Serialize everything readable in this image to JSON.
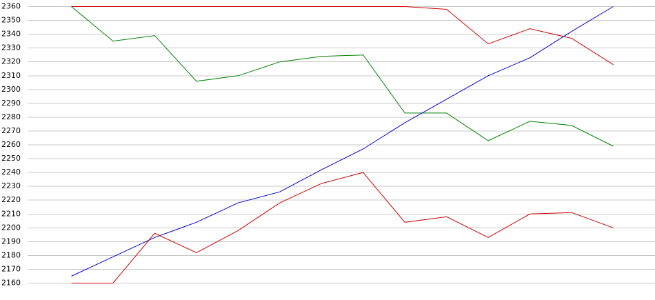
{
  "chart_data": {
    "type": "line",
    "categories": [
      null,
      null,
      null,
      null,
      null,
      null,
      null,
      null,
      null,
      null,
      null,
      null,
      null,
      null
    ],
    "series": [
      {
        "color": "#cc0000",
        "values": [
          2360,
          2360,
          2360,
          2360,
          2360,
          2360,
          2360,
          2360,
          2360,
          2358,
          2333,
          2344,
          2337,
          2318
        ]
      },
      {
        "color": "#008000",
        "values": [
          2360,
          2335,
          2339,
          2306,
          2310,
          2320,
          2324,
          2325,
          2283,
          2283,
          2263,
          2277,
          2274,
          2259
        ]
      },
      {
        "color": "#0000cc",
        "values": [
          2165,
          2179,
          2193,
          2204,
          2218,
          2226,
          2242,
          2257,
          2276,
          2293,
          2310,
          2323,
          2342,
          2360
        ]
      },
      {
        "color": "#cc0000",
        "values": [
          2160,
          2160,
          2196,
          2182,
          2198,
          2218,
          2232,
          2240,
          2204,
          2208,
          2193,
          2210,
          2211,
          2200
        ]
      }
    ],
    "ylim": [
      2160,
      2360
    ],
    "yticks": [
      2160,
      2170,
      2180,
      2190,
      2200,
      2210,
      2220,
      2230,
      2240,
      2250,
      2260,
      2270,
      2280,
      2290,
      2300,
      2310,
      2320,
      2330,
      2340,
      2350,
      2360
    ],
    "grid": true
  }
}
